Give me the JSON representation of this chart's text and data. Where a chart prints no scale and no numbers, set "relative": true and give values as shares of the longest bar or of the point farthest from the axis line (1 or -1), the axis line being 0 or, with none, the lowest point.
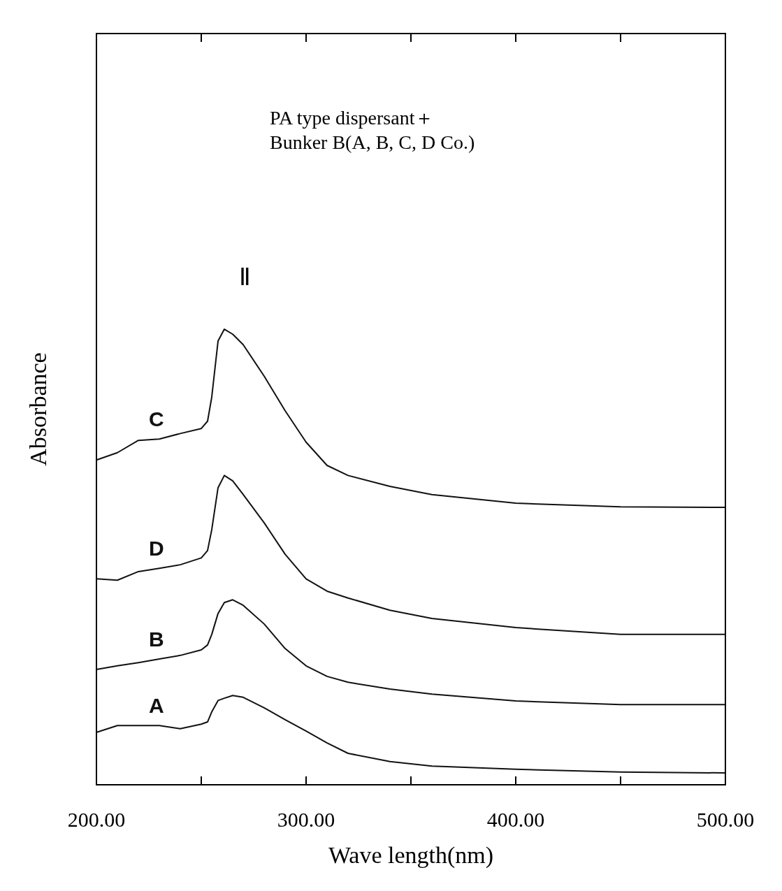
{
  "chart_data": {
    "type": "line",
    "relative": true,
    "title": "PA type dispersant＋",
    "subtitle": "Bunker B(A, B, C, D Co.)",
    "xlabel": "Wave length(nm)",
    "ylabel": "Absorbance",
    "xlim": [
      200,
      500
    ],
    "xticks": [
      {
        "value": 200,
        "label": "200.00"
      },
      {
        "value": 250,
        "label": null
      },
      {
        "value": 300,
        "label": "300.00"
      },
      {
        "value": 350,
        "label": null
      },
      {
        "value": 400,
        "label": "400.00"
      },
      {
        "value": 450,
        "label": null
      },
      {
        "value": 500,
        "label": "500.00"
      }
    ],
    "tick_labels": "x",
    "grid": false,
    "marker": "none",
    "line_style": "solid",
    "annotations": [
      "Ⅱ"
    ],
    "x": [
      200,
      210,
      220,
      230,
      240,
      250,
      253,
      255,
      258,
      261,
      265,
      270,
      280,
      290,
      300,
      310,
      320,
      340,
      360,
      400,
      450,
      500
    ],
    "series": [
      {
        "name": "C",
        "color": "#111111",
        "values": [
          0.713,
          0.729,
          0.756,
          0.759,
          0.771,
          0.782,
          0.798,
          0.851,
          0.974,
          1,
          0.989,
          0.966,
          0.897,
          0.821,
          0.752,
          0.701,
          0.679,
          0.655,
          0.637,
          0.618,
          0.61,
          0.609
        ]
      },
      {
        "name": "D",
        "color": "#111111",
        "values": [
          0.452,
          0.449,
          0.468,
          0.475,
          0.483,
          0.498,
          0.514,
          0.56,
          0.652,
          0.679,
          0.667,
          0.637,
          0.575,
          0.506,
          0.452,
          0.425,
          0.41,
          0.383,
          0.365,
          0.345,
          0.33,
          0.33
        ]
      },
      {
        "name": "B",
        "color": "#111111",
        "values": [
          0.253,
          0.261,
          0.268,
          0.276,
          0.284,
          0.296,
          0.307,
          0.33,
          0.376,
          0.4,
          0.406,
          0.394,
          0.353,
          0.299,
          0.261,
          0.238,
          0.225,
          0.21,
          0.199,
          0.184,
          0.176,
          0.176
        ]
      },
      {
        "name": "A",
        "color": "#111111",
        "values": [
          0.115,
          0.13,
          0.13,
          0.13,
          0.123,
          0.133,
          0.138,
          0.16,
          0.185,
          0.19,
          0.196,
          0.192,
          0.169,
          0.143,
          0.118,
          0.092,
          0.069,
          0.051,
          0.041,
          0.034,
          0.028,
          0.026
        ]
      }
    ]
  }
}
